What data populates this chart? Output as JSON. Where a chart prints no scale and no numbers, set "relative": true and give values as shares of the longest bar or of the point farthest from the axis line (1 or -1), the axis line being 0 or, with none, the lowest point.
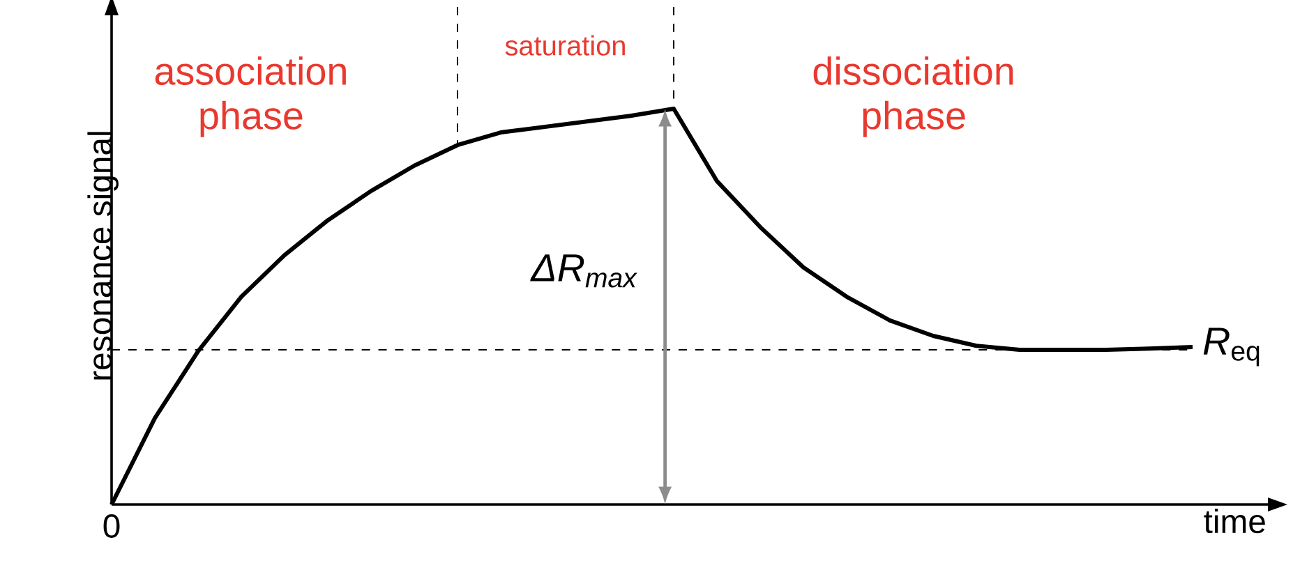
{
  "chart_data": {
    "type": "line",
    "relative": true,
    "xlabel": "time",
    "ylabel": "resonance signal",
    "categories": [
      null,
      null,
      null,
      null,
      null,
      null,
      null,
      null,
      null,
      null,
      null,
      null,
      null,
      null,
      null,
      null,
      null,
      null,
      null,
      null,
      null,
      null,
      null,
      null,
      null,
      null
    ],
    "series": [
      {
        "color": "#000000",
        "values": [
          0,
          0.218,
          0.387,
          0.525,
          0.63,
          0.718,
          0.792,
          0.856,
          0.908,
          0.94,
          0.954,
          0.968,
          0.982,
          1,
          0.817,
          0.701,
          0.599,
          0.525,
          0.465,
          0.426,
          0.401,
          0.391,
          0.391,
          0.391,
          0.394,
          0.398
        ]
      }
    ],
    "marker": "none",
    "line_style": "solid",
    "annotations": [
      "association phase",
      "saturation",
      "dissociation phase",
      "ΔR$_{max}$",
      "*R*$_{eq}$",
      "0"
    ],
    "ref_lines": [
      {
        "axis": "y",
        "value": 0.391,
        "line_style": "dashed"
      }
    ]
  }
}
